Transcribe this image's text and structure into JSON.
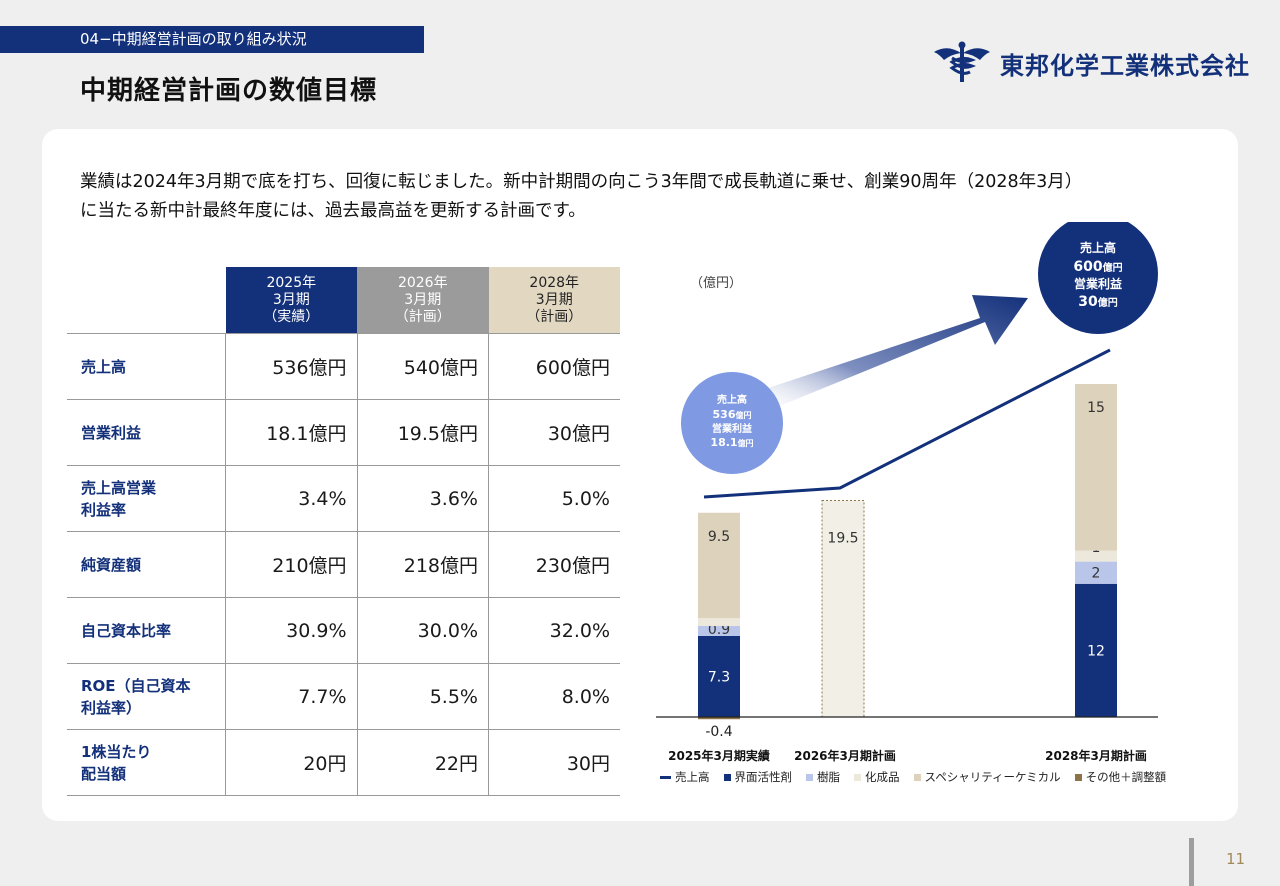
{
  "header": {
    "section": "04−中期経営計画の取り組み状況",
    "title": "中期経営計画の数値目標",
    "company": "東邦化学工業株式会社",
    "logo_icon": "caduceus-logo-icon"
  },
  "intro": {
    "line1": "業績は2024年3月期で底を打ち、回復に転じました。新中計期間の向こう3年間で成長軌道に乗せ、創業90周年（2028年3月）",
    "line2": "に当たる新中計最終年度には、過去最高益を更新する計画です。"
  },
  "table": {
    "headers": [
      {
        "year": "2025年",
        "period": "3月期",
        "note": "（実績）"
      },
      {
        "year": "2026年",
        "period": "3月期",
        "note": "（計画）"
      },
      {
        "year": "2028年",
        "period": "3月期",
        "note": "（計画）"
      }
    ],
    "rows": [
      {
        "label1": "売上高",
        "label2": "",
        "values": [
          "536億円",
          "540億円",
          "600億円"
        ]
      },
      {
        "label1": "営業利益",
        "label2": "",
        "values": [
          "18.1億円",
          "19.5億円",
          "30億円"
        ]
      },
      {
        "label1": "売上高営業",
        "label2": "利益率",
        "values": [
          "3.4%",
          "3.6%",
          "5.0%"
        ]
      },
      {
        "label1": "純資産額",
        "label2": "",
        "values": [
          "210億円",
          "218億円",
          "230億円"
        ]
      },
      {
        "label1": "自己資本比率",
        "label2": "",
        "values": [
          "30.9%",
          "30.0%",
          "32.0%"
        ]
      },
      {
        "label1": "ROE（自己資本",
        "label2": "利益率）",
        "values": [
          "7.7%",
          "5.5%",
          "8.0%"
        ]
      },
      {
        "label1": "1株当たり",
        "label2": "配当額",
        "values": [
          "20円",
          "22円",
          "30円"
        ]
      }
    ]
  },
  "chart_data": {
    "type": "bar",
    "unit": "（億円）",
    "categories": [
      "2025年3月期実績",
      "2026年3月期計画",
      "2028年3月期計画"
    ],
    "series": [
      {
        "name": "界面活性剤",
        "color": "#13307a",
        "values": [
          7.3,
          null,
          12
        ]
      },
      {
        "name": "樹脂",
        "color": "#b9c6ea",
        "values": [
          0.9,
          null,
          2
        ]
      },
      {
        "name": "化成品",
        "color": "#ece8dc",
        "values": [
          0.7,
          null,
          1
        ]
      },
      {
        "name": "スペシャリティーケミカル",
        "color": "#ddd2bc",
        "values": [
          9.5,
          null,
          15
        ]
      },
      {
        "name": "その他＋調整額",
        "color": "#8c7448",
        "values": [
          -0.4,
          null,
          null
        ]
      }
    ],
    "plan_total_2026": 19.5,
    "line_series": {
      "name": "売上高",
      "color": "#13307a"
    },
    "legend_extra": "売上高",
    "bubble_2025": {
      "l1": "売上高",
      "l2": "536",
      "l2u": "億円",
      "l3": "営業利益",
      "l4": "18.1",
      "l4u": "億円"
    },
    "bubble_2028": {
      "l1": "売上高",
      "l2": "600",
      "l2u": "億円",
      "l3": "営業利益",
      "l4": "30",
      "l4u": "億円"
    },
    "legend_placement": "bottom"
  },
  "footer": {
    "page": "11"
  }
}
